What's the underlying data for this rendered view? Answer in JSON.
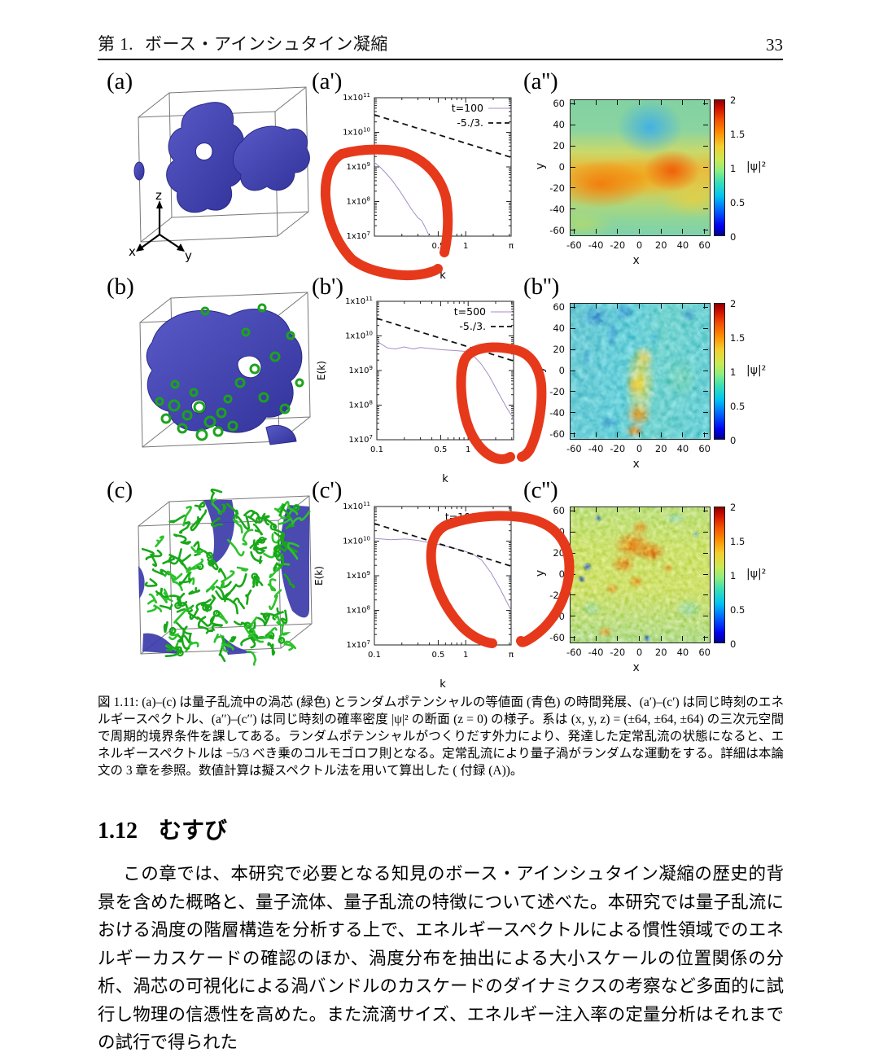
{
  "header": {
    "chapter": "第 1.",
    "title": "ボース・アインシュタイン凝縮",
    "page_number": "33"
  },
  "figure": {
    "triad": {
      "x": "x",
      "y": "y",
      "z": "z"
    },
    "panels_3d": {
      "a": {
        "label": "(a)",
        "style": "smooth blue random-potential isosurface in wireframe cube, xyz axis triad"
      },
      "b": {
        "label": "(b)",
        "style": "blue isosurface with scattered green vortex rings",
        "rings": [
          [
            62,
            148,
            6
          ],
          [
            78,
            160,
            5
          ],
          [
            93,
            150,
            6
          ],
          [
            106,
            168,
            6
          ],
          [
            120,
            157,
            5
          ],
          [
            72,
            176,
            5
          ],
          [
            96,
            184,
            6
          ],
          [
            116,
            180,
            5
          ],
          [
            134,
            173,
            5
          ],
          [
            52,
            164,
            5
          ],
          [
            143,
            120,
            5
          ],
          [
            161,
            103,
            5
          ],
          [
            172,
            138,
            5
          ],
          [
            186,
            88,
            5
          ],
          [
            63,
            122,
            4
          ],
          [
            44,
            143,
            4
          ],
          [
            205,
            62,
            4
          ],
          [
            150,
            58,
            4
          ],
          [
            100,
            32,
            4
          ],
          [
            170,
            28,
            4
          ],
          [
            216,
            120,
            4
          ],
          [
            198,
            152,
            5
          ],
          [
            86,
            132,
            4
          ],
          [
            128,
            140,
            4
          ]
        ]
      },
      "c": {
        "label": "(c)",
        "style": "dense green quantum-vortex tangle with blue surfaces behind",
        "tangle_count": 135,
        "tangle_seed": 9
      }
    }
  },
  "chart_data": [
    {
      "id": "spectrum-a",
      "panel": "(a')",
      "type": "line",
      "xscale": "log",
      "yscale": "log",
      "xlim": [
        0.1,
        3.14159
      ],
      "ylim": [
        10000000.0,
        100000000000.0
      ],
      "xlabel": "k",
      "ylabel": "",
      "xtick_labels": [
        [
          0.5,
          "0.5"
        ],
        [
          1,
          "1"
        ],
        [
          3.14159,
          "π"
        ]
      ],
      "ytick_exponents": [
        7,
        8,
        9,
        10,
        11
      ],
      "legend": [
        {
          "label": "t=100",
          "style": "solid"
        },
        {
          "label": "-5./3.",
          "style": "dashed"
        }
      ],
      "series": [
        {
          "name": "t=100",
          "style": "solid",
          "color": "#a58ec8",
          "points": [
            [
              0.1,
              1350000000.0
            ],
            [
              0.115,
              1000000000.0
            ],
            [
              0.135,
              650000000.0
            ],
            [
              0.16,
              380000000.0
            ],
            [
              0.19,
              200000000.0
            ],
            [
              0.22,
              110000000.0
            ],
            [
              0.26,
              55000000.0
            ],
            [
              0.3,
              34000000.0
            ],
            [
              0.33,
              28000000.0
            ],
            [
              0.36,
              18000000.0
            ],
            [
              0.4,
              10000000.0
            ]
          ]
        },
        {
          "name": "-5./3.",
          "style": "dashed",
          "color": "#111111",
          "points": [
            [
              0.1,
              32000000000.0
            ],
            [
              3.14159,
              1900000000.0
            ]
          ]
        }
      ]
    },
    {
      "id": "spectrum-b",
      "panel": "(b')",
      "type": "line",
      "xscale": "log",
      "yscale": "log",
      "xlim": [
        0.1,
        3.14159
      ],
      "ylim": [
        10000000.0,
        100000000000.0
      ],
      "xlabel": "k",
      "ylabel": "E(k)",
      "xtick_labels": [
        [
          0.1,
          "0.1"
        ],
        [
          0.5,
          "0.5"
        ],
        [
          1,
          "1"
        ]
      ],
      "ytick_exponents": [
        7,
        8,
        9,
        10,
        11
      ],
      "legend": [
        {
          "label": "t=500",
          "style": "solid"
        },
        {
          "label": "-5./3.",
          "style": "dashed"
        }
      ],
      "series": [
        {
          "name": "t=500",
          "style": "solid",
          "color": "#a58ec8",
          "points": [
            [
              0.1,
              7000000000.0
            ],
            [
              0.13,
              4500000000.0
            ],
            [
              0.16,
              4200000000.0
            ],
            [
              0.2,
              4800000000.0
            ],
            [
              0.25,
              4200000000.0
            ],
            [
              0.3,
              4600000000.0
            ],
            [
              0.4,
              4300000000.0
            ],
            [
              0.5,
              4000000000.0
            ],
            [
              0.7,
              3800000000.0
            ],
            [
              0.9,
              3600000000.0
            ],
            [
              1.1,
              3000000000.0
            ],
            [
              1.4,
              1500000000.0
            ],
            [
              1.7,
              700000000.0
            ],
            [
              2.1,
              250000000.0
            ],
            [
              2.6,
              90000000.0
            ],
            [
              3.14159,
              40000000.0
            ]
          ]
        },
        {
          "name": "-5./3.",
          "style": "dashed",
          "color": "#111111",
          "points": [
            [
              0.1,
              32000000000.0
            ],
            [
              3.14159,
              1900000000.0
            ]
          ]
        }
      ]
    },
    {
      "id": "spectrum-c",
      "panel": "(c')",
      "type": "line",
      "xscale": "log",
      "yscale": "log",
      "xlim": [
        0.1,
        3.14159
      ],
      "ylim": [
        10000000.0,
        100000000000.0
      ],
      "xlabel": "k",
      "ylabel": "E(k)",
      "xtick_labels": [
        [
          0.1,
          "0.1"
        ],
        [
          0.5,
          "0.5"
        ],
        [
          1,
          "1"
        ],
        [
          3.14159,
          "π"
        ]
      ],
      "ytick_exponents": [
        7,
        8,
        9,
        10,
        11
      ],
      "legend": [
        {
          "label": "t=1000",
          "style": "solid"
        }
      ],
      "series": [
        {
          "name": "t=1000",
          "style": "solid",
          "color": "#a58ec8",
          "points": [
            [
              0.1,
              12000000000.0
            ],
            [
              0.15,
              11000000000.0
            ],
            [
              0.22,
              11500000000.0
            ],
            [
              0.3,
              10500000000.0
            ],
            [
              0.4,
              9000000000.0
            ],
            [
              0.5,
              8000000000.0
            ],
            [
              0.7,
              6500000000.0
            ],
            [
              0.9,
              5500000000.0
            ],
            [
              1.2,
              4200000000.0
            ],
            [
              1.5,
              2800000000.0
            ],
            [
              1.9,
              1200000000.0
            ],
            [
              2.4,
              400000000.0
            ],
            [
              2.9,
              150000000.0
            ],
            [
              3.14159,
              100000000.0
            ]
          ]
        },
        {
          "name": "-5./3.",
          "style": "dashed",
          "color": "#111111",
          "points": [
            [
              0.1,
              32000000000.0
            ],
            [
              3.14159,
              1900000000.0
            ]
          ]
        }
      ]
    },
    {
      "id": "heatmap-a",
      "panel": "(a'')",
      "type": "heatmap",
      "xlabel": "x",
      "ylabel": "y",
      "xlim": [
        -64,
        64
      ],
      "ylim": [
        -64,
        64
      ],
      "xticks": [
        -60,
        -40,
        -20,
        0,
        20,
        40,
        60
      ],
      "yticks": [
        -60,
        -40,
        -20,
        0,
        20,
        40,
        60
      ],
      "colorbar": {
        "range": [
          0,
          2
        ],
        "ticks": [
          0,
          0.5,
          1,
          1.5,
          2
        ],
        "label": "|ψ|²"
      },
      "description": "t=100: smooth density slice; teal-green field, cyan-blue low-density blob near (15,40), broad orange high-density band across y≈-10…-30 with maxima near (-40,-25) and (35,-10)"
    },
    {
      "id": "heatmap-b",
      "panel": "(b'')",
      "type": "heatmap",
      "xlabel": "x",
      "ylabel": "y",
      "xlim": [
        -64,
        64
      ],
      "ylim": [
        -64,
        64
      ],
      "xticks": [
        -60,
        -40,
        -20,
        0,
        20,
        40,
        60
      ],
      "yticks": [
        -60,
        -40,
        -20,
        0,
        20,
        40,
        60
      ],
      "colorbar": {
        "range": [
          0,
          2
        ],
        "ticks": [
          0,
          0.5,
          1,
          1.5,
          2
        ],
        "label": "|ψ|²"
      },
      "description": "t=500: fine turbulent mottling on cyan background; dark-blue filaments upper left, yellow-orange ridge through centre with red spots near (0,-45) and (-5,-15)"
    },
    {
      "id": "heatmap-c",
      "panel": "(c'')",
      "type": "heatmap",
      "xlabel": "x",
      "ylabel": "y",
      "xlim": [
        -64,
        64
      ],
      "ylim": [
        -64,
        64
      ],
      "xticks": [
        -60,
        -40,
        -20,
        0,
        20,
        40,
        60
      ],
      "yticks": [
        -60,
        -40,
        -20,
        0,
        20,
        40,
        60
      ],
      "colorbar": {
        "range": [
          0,
          2
        ],
        "ticks": [
          0,
          0.5,
          1,
          1.5,
          2
        ],
        "label": "|ψ|²"
      },
      "description": "t=1000: fully turbulent speckle on yellow-green background; cluster of orange-red high-density patches around (0,15), scattered blue low-density dots"
    }
  ],
  "caption": "図 1.11: (a)–(c) は量子乱流中の渦芯 (緑色) とランダムポテンシャルの等値面 (青色) の時間発展、(a′)–(c′) は同じ時刻のエネルギースペクトル、(a′′)–(c′′) は同じ時刻の確率密度 |ψ|² の断面 (z = 0) の様子。系は (x, y, z) = (±64, ±64, ±64) の三次元空間で周期的境界条件を課してある。ランダムポテンシャルがつくりだす外力により、発達した定常乱流の状態になると、エネルギースペクトルは −5/3 べき乗のコルモゴロフ則となる。定常乱流により量子渦がランダムな運動をする。詳細は本論文の 3 章を参照。数値計算は擬スペクトル法を用いて算出した ( 付録 (A))。",
  "section": {
    "number": "1.12",
    "title": "むすび"
  },
  "body": "この章では、本研究で必要となる知見のボース・アインシュタイン凝縮の歴史的背景を含めた概略と、量子流体、量子乱流の特徴について述べた。本研究では量子乱流における渦度の階層構造を分析する上で、エネルギースペクトルによる慣性領域でのエネルギーカスケードの確認のほか、渦度分布を抽出による大小スケールの位置関係の分析、渦芯の可視化による渦バンドルのカスケードのダイナミクスの考察など多面的に試行し物理の信憑性を高めた。また流滴サイズ、エネルギー注入率の定量分析はそれまでの試行で得られた",
  "colors": {
    "annotation_red": "#e6391b",
    "curve_purple": "#a58ec8",
    "surface_blue": "#3f3fae",
    "vortex_green": "#1ca31c"
  }
}
